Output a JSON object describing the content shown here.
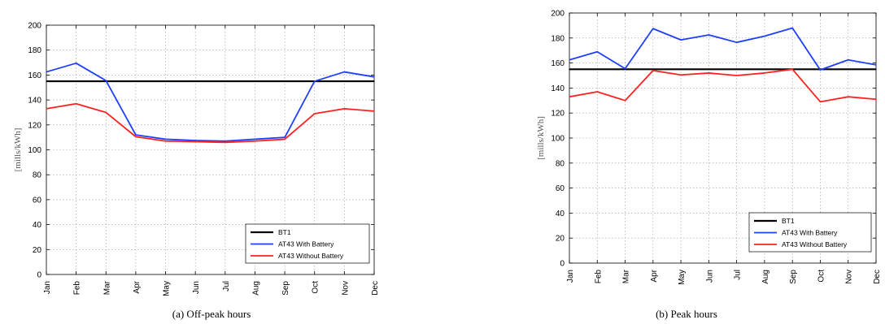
{
  "chart_data": [
    {
      "type": "line",
      "caption": "(a) Off-peak hours",
      "ylabel": "[mills/kWh]",
      "ylim": [
        0,
        200
      ],
      "yticks": [
        0,
        20,
        40,
        60,
        80,
        100,
        120,
        140,
        160,
        180,
        200
      ],
      "categories": [
        "Jan",
        "Feb",
        "Mar",
        "Apr",
        "May",
        "Jun",
        "Jul",
        "Aug",
        "Sep",
        "Oct",
        "Nov",
        "Dec"
      ],
      "grid": true,
      "legend_position": "bottom-right",
      "series": [
        {
          "name": "BT1",
          "color": "#000000",
          "values": [
            155,
            155,
            155,
            155,
            155,
            155,
            155,
            155,
            155,
            155,
            155,
            155
          ]
        },
        {
          "name": "AT43 With Battery",
          "color": "#1f3fff",
          "values": [
            162.5,
            169.5,
            155.5,
            112,
            108.5,
            107.5,
            107,
            108.5,
            110,
            155,
            162.5,
            158.5
          ]
        },
        {
          "name": "AT43 Without Battery",
          "color": "#ff2020",
          "values": [
            133,
            137,
            130,
            110.5,
            107,
            106.5,
            106,
            107,
            108.5,
            129,
            133,
            131
          ]
        }
      ]
    },
    {
      "type": "line",
      "caption": "(b) Peak hours",
      "ylabel": "[mills/kWh]",
      "ylim": [
        0,
        200
      ],
      "yticks": [
        0,
        20,
        40,
        60,
        80,
        100,
        120,
        140,
        160,
        180,
        200
      ],
      "categories": [
        "Jan",
        "Feb",
        "Mar",
        "Apr",
        "May",
        "Jun",
        "Jul",
        "Aug",
        "Sep",
        "Oct",
        "Nov",
        "Dec"
      ],
      "grid": true,
      "legend_position": "bottom-right",
      "series": [
        {
          "name": "BT1",
          "color": "#000000",
          "values": [
            155,
            155,
            155,
            155,
            155,
            155,
            155,
            155,
            155,
            155,
            155,
            155
          ]
        },
        {
          "name": "AT43 With Battery",
          "color": "#1f3fff",
          "values": [
            162.5,
            169,
            155.5,
            187.5,
            178.5,
            182.5,
            176.5,
            181.5,
            188,
            154.5,
            162.5,
            158.5
          ]
        },
        {
          "name": "AT43 Without Battery",
          "color": "#ff2020",
          "values": [
            133,
            137,
            130,
            154,
            150.5,
            152,
            150,
            152,
            155,
            129,
            133,
            131
          ]
        }
      ]
    }
  ]
}
